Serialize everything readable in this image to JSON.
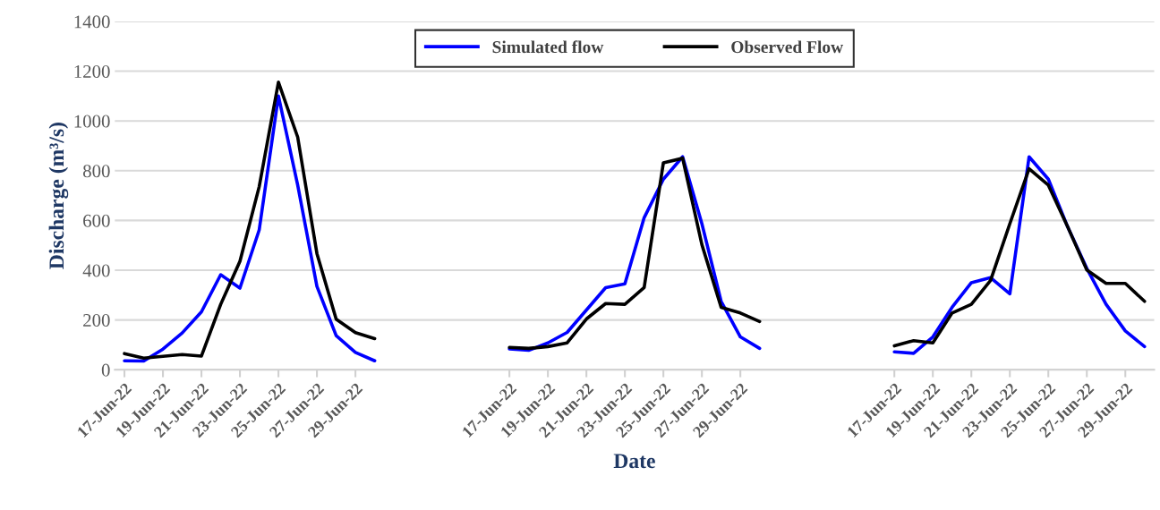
{
  "chart_data": {
    "type": "line",
    "xlabel": "Date",
    "ylabel": "Discharge (m³/s)",
    "categories": [
      "17-Jun-22",
      null,
      "19-Jun-22",
      null,
      "21-Jun-22",
      null,
      "23-Jun-22",
      null,
      "25-Jun-22",
      null,
      "27-Jun-22",
      null,
      "29-Jun-22",
      null,
      null,
      null,
      null,
      null,
      null,
      null,
      "17-Jun-22",
      null,
      "19-Jun-22",
      null,
      "21-Jun-22",
      null,
      "23-Jun-22",
      null,
      "25-Jun-22",
      null,
      "27-Jun-22",
      null,
      "29-Jun-22",
      null,
      null,
      null,
      null,
      null,
      null,
      null,
      "17-Jun-22",
      null,
      "19-Jun-22",
      null,
      "21-Jun-22",
      null,
      "23-Jun-22",
      null,
      "25-Jun-22",
      null,
      "27-Jun-22",
      null,
      "29-Jun-22",
      null
    ],
    "series": [
      {
        "name": "Simulated flow",
        "color": "#0000ff",
        "values": [
          36,
          35,
          83,
          148,
          233,
          382,
          328,
          562,
          1100,
          742,
          335,
          137,
          70,
          36,
          null,
          null,
          null,
          null,
          null,
          null,
          84,
          78,
          108,
          150,
          240,
          330,
          345,
          611,
          766,
          856,
          587,
          275,
          132,
          86,
          null,
          null,
          null,
          null,
          null,
          null,
          72,
          66,
          132,
          251,
          350,
          370,
          305,
          856,
          766,
          575,
          407,
          263,
          156,
          93
        ]
      },
      {
        "name": "Observed Flow",
        "color": "#000000",
        "values": [
          65,
          47,
          54,
          61,
          55,
          263,
          436,
          736,
          1156,
          935,
          467,
          203,
          149,
          125,
          null,
          null,
          null,
          null,
          null,
          null,
          90,
          86,
          93,
          108,
          204,
          266,
          263,
          330,
          832,
          850,
          503,
          251,
          228,
          194,
          null,
          null,
          null,
          null,
          null,
          null,
          96,
          117,
          108,
          228,
          263,
          359,
          587,
          808,
          742,
          575,
          401,
          347,
          347,
          275
        ]
      }
    ],
    "ylim": [
      0,
      1400
    ],
    "yticks": [
      0,
      200,
      400,
      600,
      800,
      1000,
      1200,
      1400
    ],
    "grid": "y",
    "legend": "top",
    "marker": "none",
    "line_style": "solid"
  }
}
